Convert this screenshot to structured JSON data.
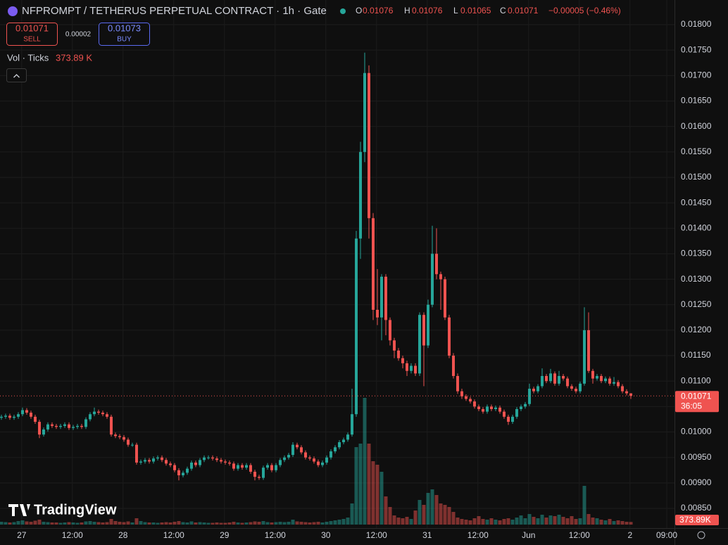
{
  "chart_data": {
    "type": "candlestick",
    "title": "NFPROMPT / TETHERUS PERPETUAL CONTRACT · 1h · Gate",
    "ohlc_legend": [
      {
        "label": "O",
        "value": 0.01076
      },
      {
        "label": "H",
        "value": 0.01076
      },
      {
        "label": "L",
        "value": 0.01065
      },
      {
        "label": "C",
        "value": 0.01071
      }
    ],
    "change": "−0.00005 (−0.46%)",
    "sell": {
      "value": 0.01071,
      "label": "SELL"
    },
    "spread": 2e-05,
    "buy": {
      "value": 0.01073,
      "label": "BUY"
    },
    "volume_title": "Vol · Ticks",
    "volume_label": "373.89 K",
    "last_volume_label": "373.89K",
    "last_price": 0.01071,
    "countdown": "36:05",
    "watermark": "TradingView",
    "up_color": "#26a69a",
    "down_color": "#ef5350",
    "grid": true,
    "ylim": [
      0.008113,
      0.018484
    ],
    "yticks": [
      {
        "value": 0.0085,
        "label": "0.00850"
      },
      {
        "value": 0.009,
        "label": "0.00900"
      },
      {
        "value": 0.0095,
        "label": "0.00950"
      },
      {
        "value": 0.01,
        "label": "0.01000"
      },
      {
        "value": 0.0105,
        "label": "0.01050"
      },
      {
        "value": 0.011,
        "label": "0.01100"
      },
      {
        "value": 0.0115,
        "label": "0.01150"
      },
      {
        "value": 0.012,
        "label": "0.01200"
      },
      {
        "value": 0.0125,
        "label": "0.01250"
      },
      {
        "value": 0.013,
        "label": "0.01300"
      },
      {
        "value": 0.0135,
        "label": "0.01350"
      },
      {
        "value": 0.014,
        "label": "0.01400"
      },
      {
        "value": 0.0145,
        "label": "0.01450"
      },
      {
        "value": 0.015,
        "label": "0.01500"
      },
      {
        "value": 0.0155,
        "label": "0.01550"
      },
      {
        "value": 0.016,
        "label": "0.01600"
      },
      {
        "value": 0.0165,
        "label": "0.01650"
      },
      {
        "value": 0.017,
        "label": "0.01700"
      },
      {
        "value": 0.0175,
        "label": "0.01750"
      },
      {
        "value": 0.018,
        "label": "0.01800"
      }
    ],
    "xlim": [
      -0.33,
      159.33
    ],
    "xticks": [
      {
        "value": 4.8,
        "label": "27"
      },
      {
        "value": 16.8,
        "label": "12:00"
      },
      {
        "value": 28.8,
        "label": "28"
      },
      {
        "value": 40.8,
        "label": "12:00"
      },
      {
        "value": 52.8,
        "label": "29"
      },
      {
        "value": 64.8,
        "label": "12:00"
      },
      {
        "value": 76.8,
        "label": "30"
      },
      {
        "value": 88.8,
        "label": "12:00"
      },
      {
        "value": 100.8,
        "label": "31"
      },
      {
        "value": 112.8,
        "label": "12:00"
      },
      {
        "value": 124.8,
        "label": "Jun"
      },
      {
        "value": 136.8,
        "label": "12:00"
      },
      {
        "value": 148.8,
        "label": "2"
      },
      {
        "value": 157.5,
        "label": "09:00"
      }
    ],
    "vlim": [
      0,
      20000000
    ],
    "open": [
      0.01028,
      0.0103,
      0.01032,
      0.01028,
      0.0103,
      0.01035,
      0.01043,
      0.01038,
      0.0103,
      0.0102,
      0.00995,
      0.01005,
      0.01015,
      0.01012,
      0.0101,
      0.01012,
      0.01015,
      0.01008,
      0.0101,
      0.01012,
      0.0101,
      0.01025,
      0.01035,
      0.0104,
      0.01038,
      0.01035,
      0.0103,
      0.00995,
      0.00992,
      0.0099,
      0.00985,
      0.00975,
      0.00975,
      0.0094,
      0.00942,
      0.00945,
      0.00942,
      0.00948,
      0.0095,
      0.00945,
      0.00938,
      0.00935,
      0.00925,
      0.00915,
      0.0092,
      0.00928,
      0.0094,
      0.00935,
      0.00945,
      0.0095,
      0.0095,
      0.00948,
      0.00945,
      0.00942,
      0.0094,
      0.00938,
      0.00928,
      0.00935,
      0.0093,
      0.00935,
      0.00922,
      0.00912,
      0.0091,
      0.0093,
      0.00935,
      0.00925,
      0.00935,
      0.00945,
      0.0095,
      0.00955,
      0.00975,
      0.0097,
      0.0096,
      0.0095,
      0.00948,
      0.00942,
      0.00935,
      0.0094,
      0.0095,
      0.00962,
      0.0097,
      0.0098,
      0.00985,
      0.00995,
      0.01035,
      0.0138,
      0.0155,
      0.01705,
      0.0142,
      0.0124,
      0.01225,
      0.01305,
      0.0122,
      0.0118,
      0.0116,
      0.01145,
      0.01135,
      0.0112,
      0.0113,
      0.01115,
      0.0123,
      0.0117,
      0.0125,
      0.0135,
      0.0131,
      0.013,
      0.01225,
      0.0115,
      0.0111,
      0.0108,
      0.0107,
      0.01065,
      0.0106,
      0.0105,
      0.01045,
      0.0104,
      0.0105,
      0.01045,
      0.01048,
      0.0104,
      0.0103,
      0.0102,
      0.0103,
      0.01045,
      0.0105,
      0.01055,
      0.01085,
      0.0108,
      0.0109,
      0.0111,
      0.011,
      0.01115,
      0.01095,
      0.0111,
      0.01105,
      0.0109,
      0.01085,
      0.0108,
      0.01095,
      0.012,
      0.0112,
      0.01105,
      0.0111,
      0.011,
      0.01105,
      0.01095,
      0.01098,
      0.0109,
      0.0108,
      0.01076
    ],
    "high": [
      0.01034,
      0.01036,
      0.01036,
      0.01034,
      0.01039,
      0.01048,
      0.01047,
      0.01042,
      0.01034,
      0.01024,
      0.01009,
      0.01019,
      0.01019,
      0.01016,
      0.01016,
      0.01019,
      0.01019,
      0.01014,
      0.01016,
      0.01016,
      0.01029,
      0.01039,
      0.01048,
      0.01044,
      0.01042,
      0.01039,
      0.01034,
      0.00999,
      0.00996,
      0.00994,
      0.00989,
      0.00979,
      0.00979,
      0.00946,
      0.00949,
      0.00949,
      0.00952,
      0.00954,
      0.00954,
      0.00949,
      0.00942,
      0.00939,
      0.00929,
      0.00924,
      0.00932,
      0.00944,
      0.00944,
      0.00949,
      0.00954,
      0.00954,
      0.00954,
      0.00952,
      0.00949,
      0.00946,
      0.00944,
      0.00942,
      0.00939,
      0.00939,
      0.00939,
      0.00939,
      0.00926,
      0.00916,
      0.00934,
      0.00939,
      0.00939,
      0.00939,
      0.00949,
      0.00954,
      0.00959,
      0.0098,
      0.00979,
      0.00974,
      0.00964,
      0.00954,
      0.00952,
      0.00946,
      0.00944,
      0.00954,
      0.00966,
      0.00974,
      0.00984,
      0.00989,
      0.00999,
      0.01085,
      0.01395,
      0.0157,
      0.01745,
      0.0172,
      0.0143,
      0.0132,
      0.0131,
      0.0131,
      0.01225,
      0.01185,
      0.01165,
      0.0115,
      0.0114,
      0.01135,
      0.01135,
      0.01235,
      0.01235,
      0.0126,
      0.01405,
      0.014,
      0.01315,
      0.01305,
      0.0123,
      0.01155,
      0.01115,
      0.01085,
      0.01074,
      0.01069,
      0.01064,
      0.01054,
      0.01049,
      0.01054,
      0.01054,
      0.01052,
      0.01052,
      0.01044,
      0.01034,
      0.01034,
      0.01049,
      0.01054,
      0.01059,
      0.01095,
      0.01089,
      0.01094,
      0.01125,
      0.01114,
      0.01124,
      0.01119,
      0.0112,
      0.01114,
      0.01109,
      0.01094,
      0.01089,
      0.01099,
      0.01245,
      0.01235,
      0.01124,
      0.01114,
      0.01114,
      0.01109,
      0.01109,
      0.01108,
      0.01102,
      0.01094,
      0.01084,
      0.01076
    ],
    "low": [
      0.01024,
      0.01026,
      0.01024,
      0.01024,
      0.01026,
      0.01031,
      0.01034,
      0.01026,
      0.01016,
      0.00988,
      0.00991,
      0.01001,
      0.01008,
      0.01006,
      0.01006,
      0.01008,
      0.01004,
      0.01004,
      0.01006,
      0.01006,
      0.01006,
      0.01021,
      0.01031,
      0.01034,
      0.01031,
      0.01026,
      0.00991,
      0.00988,
      0.00986,
      0.00981,
      0.00971,
      0.00971,
      0.00936,
      0.00936,
      0.00938,
      0.00938,
      0.00938,
      0.00944,
      0.00941,
      0.00934,
      0.00931,
      0.00921,
      0.00905,
      0.00911,
      0.00916,
      0.00924,
      0.00931,
      0.00931,
      0.00941,
      0.00946,
      0.00944,
      0.00941,
      0.00938,
      0.00936,
      0.00934,
      0.00924,
      0.00924,
      0.00926,
      0.00926,
      0.00918,
      0.00905,
      0.00906,
      0.00906,
      0.00926,
      0.00921,
      0.00921,
      0.00931,
      0.00941,
      0.00946,
      0.00951,
      0.00966,
      0.00956,
      0.00946,
      0.00944,
      0.00938,
      0.00931,
      0.00931,
      0.00936,
      0.00946,
      0.00958,
      0.00966,
      0.00976,
      0.00981,
      0.00991,
      0.0103,
      0.0134,
      0.0153,
      0.0138,
      0.0122,
      0.0121,
      0.0118,
      0.0119,
      0.0117,
      0.01145,
      0.0114,
      0.01125,
      0.0111,
      0.01115,
      0.0111,
      0.0111,
      0.0109,
      0.01165,
      0.01245,
      0.013,
      0.0124,
      0.0122,
      0.01145,
      0.01105,
      0.01075,
      0.01065,
      0.01061,
      0.01056,
      0.01046,
      0.01041,
      0.01036,
      0.01036,
      0.01041,
      0.01041,
      0.01036,
      0.01026,
      0.01014,
      0.01016,
      0.01026,
      0.01041,
      0.01046,
      0.01051,
      0.01076,
      0.01076,
      0.01086,
      0.01096,
      0.01096,
      0.01091,
      0.01091,
      0.01101,
      0.01086,
      0.01081,
      0.01076,
      0.01076,
      0.01091,
      0.01116,
      0.01095,
      0.01101,
      0.01096,
      0.01096,
      0.01091,
      0.01091,
      0.01086,
      0.01076,
      0.01072,
      0.01065
    ],
    "close": [
      0.0103,
      0.01032,
      0.01028,
      0.0103,
      0.01035,
      0.01043,
      0.01038,
      0.0103,
      0.0102,
      0.00995,
      0.01005,
      0.01015,
      0.01012,
      0.0101,
      0.01012,
      0.01015,
      0.01008,
      0.0101,
      0.01012,
      0.0101,
      0.01025,
      0.01035,
      0.0104,
      0.01038,
      0.01035,
      0.0103,
      0.00995,
      0.00992,
      0.0099,
      0.00985,
      0.00975,
      0.00975,
      0.0094,
      0.00942,
      0.00945,
      0.00942,
      0.00948,
      0.0095,
      0.00945,
      0.00938,
      0.00935,
      0.00925,
      0.00915,
      0.0092,
      0.00928,
      0.0094,
      0.00935,
      0.00945,
      0.0095,
      0.0095,
      0.00948,
      0.00945,
      0.00942,
      0.0094,
      0.00938,
      0.00928,
      0.00935,
      0.0093,
      0.00935,
      0.00922,
      0.00912,
      0.0091,
      0.0093,
      0.00935,
      0.00925,
      0.00935,
      0.00945,
      0.0095,
      0.00955,
      0.00975,
      0.0097,
      0.0096,
      0.0095,
      0.00948,
      0.00942,
      0.00935,
      0.0094,
      0.0095,
      0.00962,
      0.0097,
      0.0098,
      0.00985,
      0.00995,
      0.01035,
      0.0138,
      0.0155,
      0.01705,
      0.0142,
      0.0124,
      0.01225,
      0.01305,
      0.0122,
      0.0118,
      0.0116,
      0.01145,
      0.01135,
      0.0112,
      0.0113,
      0.01115,
      0.0123,
      0.0117,
      0.0125,
      0.0135,
      0.0131,
      0.013,
      0.01225,
      0.0115,
      0.0111,
      0.0108,
      0.0107,
      0.01065,
      0.0106,
      0.0105,
      0.01045,
      0.0104,
      0.0105,
      0.01045,
      0.01048,
      0.0104,
      0.0103,
      0.0102,
      0.0103,
      0.01045,
      0.0105,
      0.01055,
      0.01085,
      0.0108,
      0.0109,
      0.0111,
      0.011,
      0.01115,
      0.01095,
      0.0111,
      0.01105,
      0.0109,
      0.01085,
      0.0108,
      0.01095,
      0.012,
      0.0112,
      0.01105,
      0.0111,
      0.011,
      0.01105,
      0.01095,
      0.01098,
      0.0109,
      0.0108,
      0.01076,
      0.01071
    ],
    "volume": [
      400000,
      350000,
      300000,
      350000,
      500000,
      600000,
      450000,
      400000,
      550000,
      700000,
      400000,
      350000,
      300000,
      300000,
      250000,
      300000,
      350000,
      300000,
      250000,
      300000,
      450000,
      500000,
      400000,
      350000,
      300000,
      350000,
      800000,
      500000,
      400000,
      350000,
      450000,
      300000,
      900000,
      500000,
      350000,
      300000,
      300000,
      250000,
      300000,
      350000,
      300000,
      400000,
      500000,
      350000,
      300000,
      450000,
      300000,
      350000,
      300000,
      250000,
      250000,
      300000,
      250000,
      250000,
      300000,
      400000,
      300000,
      250000,
      300000,
      350000,
      450000,
      400000,
      500000,
      350000,
      300000,
      350000,
      400000,
      350000,
      400000,
      700000,
      450000,
      400000,
      350000,
      300000,
      350000,
      400000,
      300000,
      400000,
      500000,
      600000,
      700000,
      800000,
      1000000,
      3000000,
      11000000,
      11500000,
      18000000,
      11500000,
      9000000,
      8500000,
      7500000,
      4000000,
      2500000,
      1300000,
      1000000,
      900000,
      1100000,
      800000,
      2000000,
      3500000,
      2800000,
      4500000,
      5000000,
      4200000,
      3000000,
      2800000,
      2500000,
      1800000,
      1000000,
      800000,
      700000,
      600000,
      900000,
      1200000,
      800000,
      700000,
      900000,
      700000,
      600000,
      800000,
      900000,
      700000,
      1000000,
      1300000,
      900000,
      1500000,
      1100000,
      900000,
      1400000,
      1000000,
      1300000,
      1200000,
      1400000,
      1100000,
      900000,
      1200000,
      800000,
      900000,
      5500000,
      1500000,
      1000000,
      900000,
      700000,
      600000,
      800000,
      500000,
      600000,
      500000,
      400000,
      373890
    ]
  }
}
